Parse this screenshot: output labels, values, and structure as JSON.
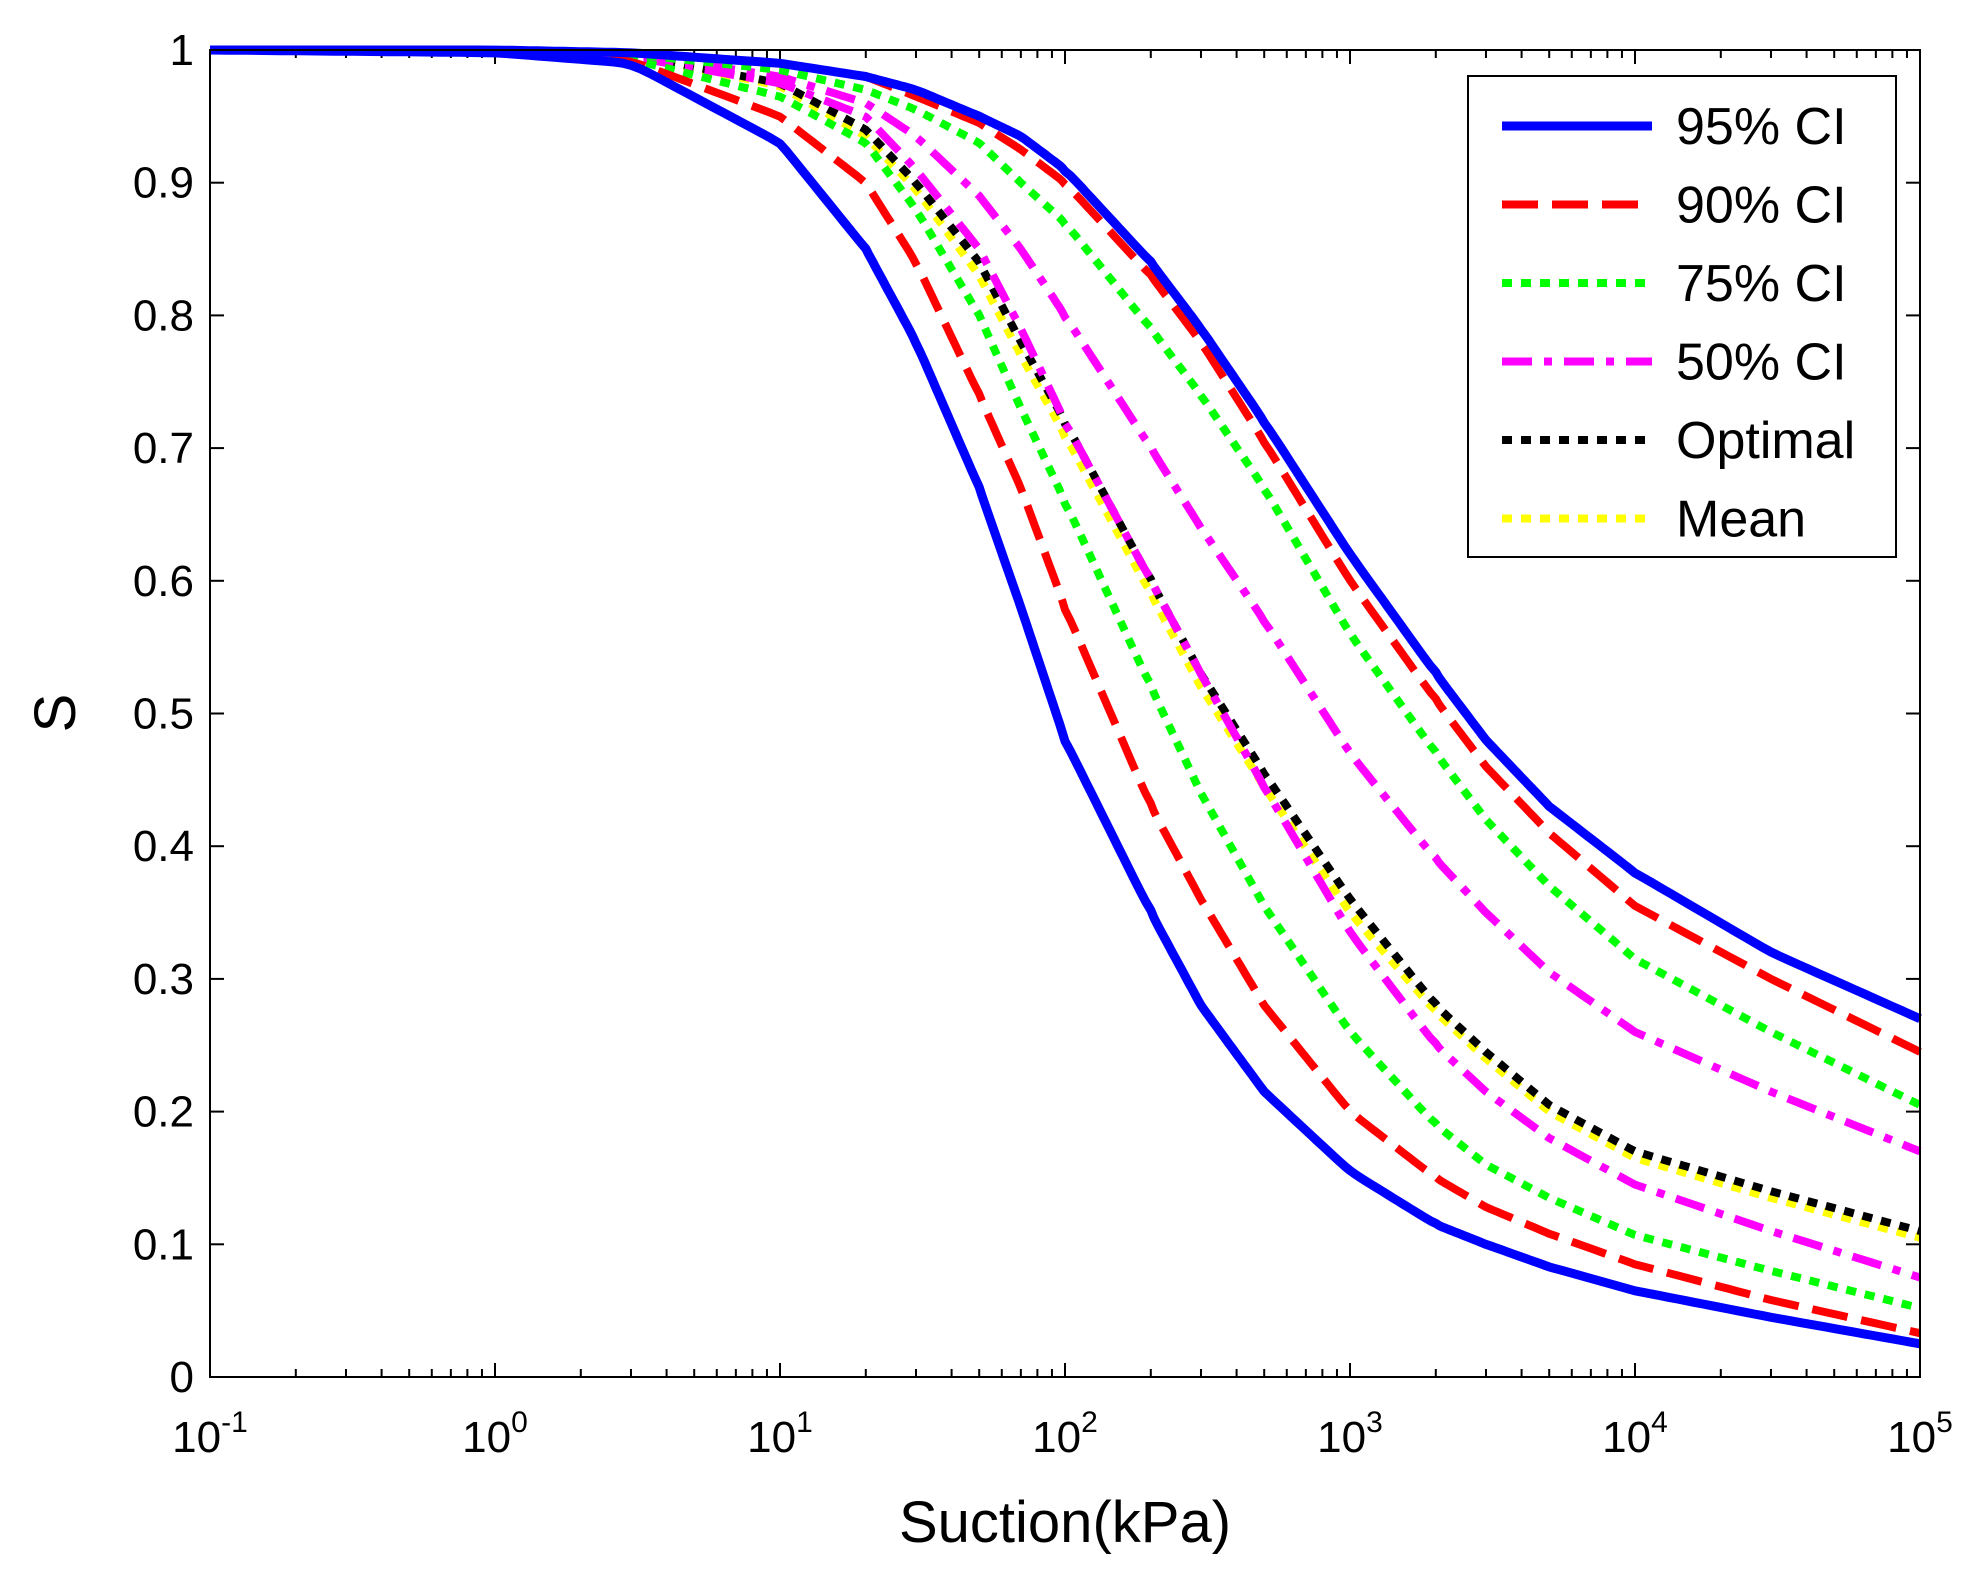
{
  "chart_data": {
    "type": "line",
    "xlabel": "Suction(kPa)",
    "ylabel": "S",
    "xscale": "log",
    "xlim": [
      0.1,
      100000
    ],
    "ylim": [
      0,
      1
    ],
    "grid": false,
    "legend_position": "top-right",
    "x_ticks": [
      {
        "base": "10",
        "exp": "-1",
        "value": 0.1
      },
      {
        "base": "10",
        "exp": "0",
        "value": 1
      },
      {
        "base": "10",
        "exp": "1",
        "value": 10
      },
      {
        "base": "10",
        "exp": "2",
        "value": 100
      },
      {
        "base": "10",
        "exp": "3",
        "value": 1000
      },
      {
        "base": "10",
        "exp": "4",
        "value": 10000
      },
      {
        "base": "10",
        "exp": "5",
        "value": 100000
      }
    ],
    "y_ticks": [
      {
        "label": "0",
        "value": 0
      },
      {
        "label": "0.1",
        "value": 0.1
      },
      {
        "label": "0.2",
        "value": 0.2
      },
      {
        "label": "0.3",
        "value": 0.3
      },
      {
        "label": "0.4",
        "value": 0.4
      },
      {
        "label": "0.5",
        "value": 0.5
      },
      {
        "label": "0.6",
        "value": 0.6
      },
      {
        "label": "0.7",
        "value": 0.7
      },
      {
        "label": "0.8",
        "value": 0.8
      },
      {
        "label": "0.9",
        "value": 0.9
      },
      {
        "label": "1",
        "value": 1
      }
    ],
    "x": [
      0.1,
      1,
      3,
      10,
      20,
      30,
      50,
      70,
      100,
      200,
      300,
      500,
      1000,
      2000,
      3000,
      5000,
      10000,
      30000,
      100000
    ],
    "series": [
      {
        "name": "95% CI",
        "color": "#0000ff",
        "style": "solid",
        "values_upper": [
          1.0,
          1.0,
          0.998,
          0.99,
          0.98,
          0.97,
          0.95,
          0.935,
          0.91,
          0.84,
          0.79,
          0.72,
          0.62,
          0.53,
          0.48,
          0.43,
          0.38,
          0.32,
          0.27
        ],
        "values_lower": [
          1.0,
          0.998,
          0.99,
          0.93,
          0.85,
          0.78,
          0.67,
          0.58,
          0.48,
          0.35,
          0.28,
          0.215,
          0.155,
          0.115,
          0.1,
          0.083,
          0.065,
          0.045,
          0.025
        ]
      },
      {
        "name": "90% CI",
        "color": "#ff0000",
        "style": "dashed",
        "values_upper": [
          1.0,
          1.0,
          0.998,
          0.99,
          0.98,
          0.965,
          0.945,
          0.925,
          0.9,
          0.83,
          0.78,
          0.705,
          0.6,
          0.51,
          0.46,
          0.41,
          0.355,
          0.3,
          0.245
        ],
        "values_lower": [
          1.0,
          0.998,
          0.992,
          0.95,
          0.9,
          0.84,
          0.74,
          0.67,
          0.58,
          0.43,
          0.36,
          0.28,
          0.2,
          0.15,
          0.128,
          0.108,
          0.085,
          0.058,
          0.033
        ]
      },
      {
        "name": "75% CI",
        "color": "#00ff00",
        "style": "dotted",
        "values_upper": [
          1.0,
          1.0,
          0.997,
          0.985,
          0.97,
          0.955,
          0.93,
          0.9,
          0.87,
          0.79,
          0.74,
          0.67,
          0.56,
          0.47,
          0.42,
          0.37,
          0.315,
          0.26,
          0.205
        ],
        "values_lower": [
          1.0,
          0.999,
          0.993,
          0.965,
          0.93,
          0.88,
          0.8,
          0.73,
          0.66,
          0.52,
          0.44,
          0.355,
          0.26,
          0.19,
          0.16,
          0.135,
          0.107,
          0.08,
          0.052
        ]
      },
      {
        "name": "50% CI",
        "color": "#ff00ff",
        "style": "dashdot",
        "values_upper": [
          1.0,
          1.0,
          0.997,
          0.98,
          0.96,
          0.935,
          0.89,
          0.85,
          0.8,
          0.7,
          0.64,
          0.57,
          0.47,
          0.39,
          0.35,
          0.305,
          0.26,
          0.215,
          0.17
        ],
        "values_lower": [
          1.0,
          0.999,
          0.995,
          0.975,
          0.95,
          0.91,
          0.85,
          0.79,
          0.72,
          0.6,
          0.53,
          0.445,
          0.335,
          0.25,
          0.215,
          0.18,
          0.145,
          0.11,
          0.075
        ]
      },
      {
        "name": "Optimal",
        "color": "#000000",
        "style": "dotted",
        "values": [
          1.0,
          1.0,
          0.996,
          0.975,
          0.94,
          0.9,
          0.84,
          0.78,
          0.72,
          0.6,
          0.53,
          0.455,
          0.36,
          0.28,
          0.245,
          0.205,
          0.17,
          0.14,
          0.11
        ]
      },
      {
        "name": "Mean",
        "color": "#ffff00",
        "style": "dotted",
        "values": [
          1.0,
          1.0,
          0.996,
          0.973,
          0.935,
          0.895,
          0.83,
          0.77,
          0.71,
          0.59,
          0.52,
          0.445,
          0.35,
          0.275,
          0.24,
          0.2,
          0.165,
          0.135,
          0.105
        ]
      }
    ]
  }
}
